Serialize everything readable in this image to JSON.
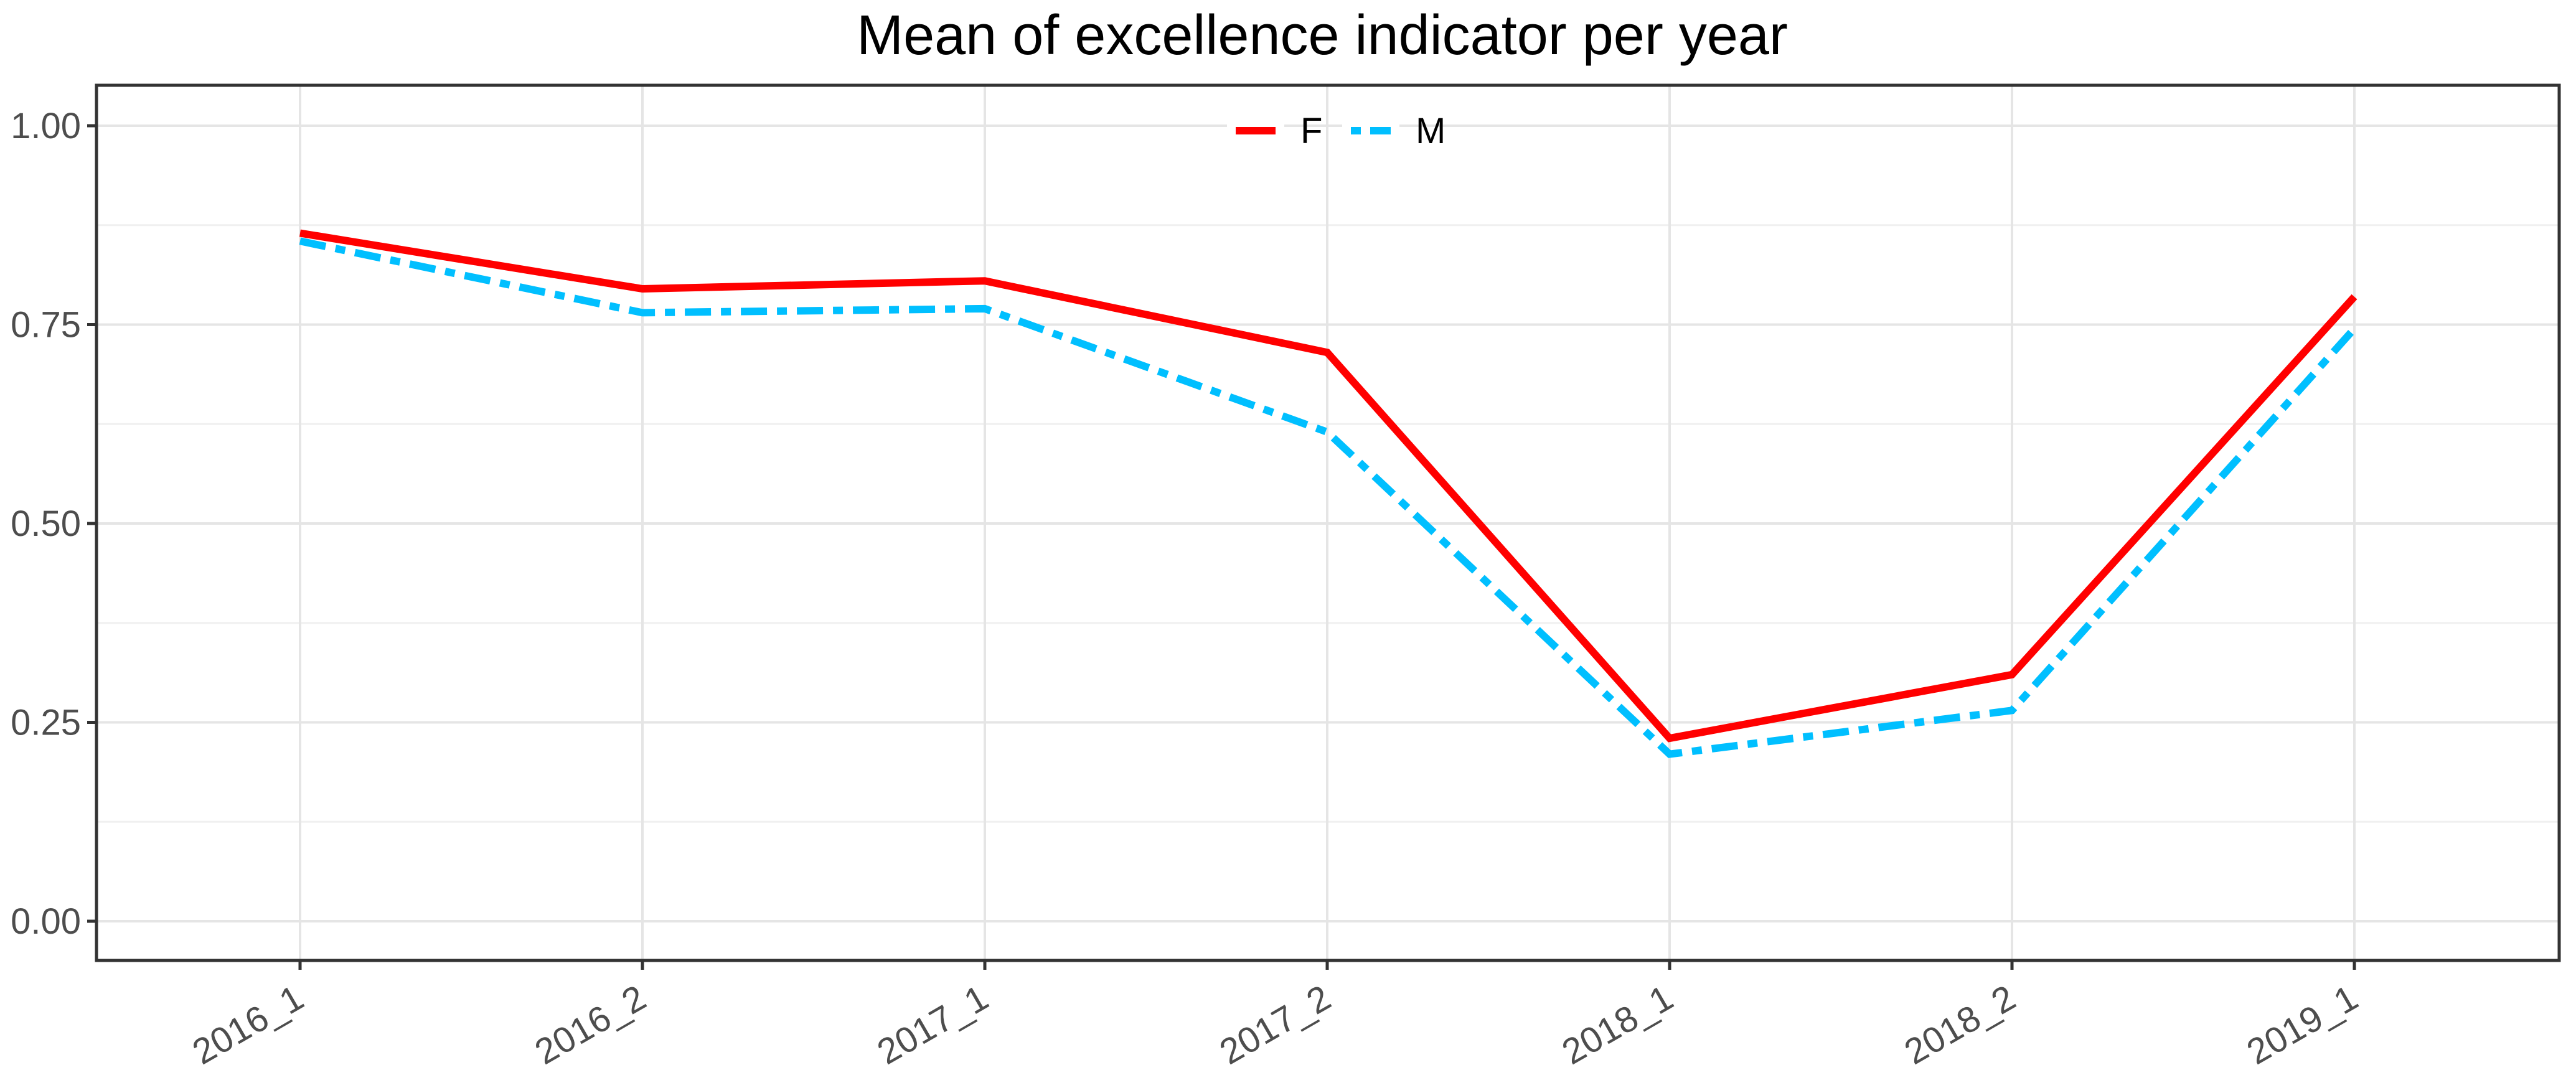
{
  "chart_data": {
    "type": "line",
    "title": "Mean of excellence indicator per year",
    "categories": [
      "2016_1",
      "2016_2",
      "2017_1",
      "2017_2",
      "2018_1",
      "2018_2",
      "2019_1"
    ],
    "series": [
      {
        "name": "F",
        "color": "#ff0000",
        "linestyle": "solid",
        "values": [
          0.865,
          0.795,
          0.805,
          0.715,
          0.23,
          0.31,
          0.785
        ]
      },
      {
        "name": "M",
        "color": "#00bfff",
        "linestyle": "twodash",
        "values": [
          0.855,
          0.765,
          0.77,
          0.615,
          0.21,
          0.265,
          0.745
        ]
      }
    ],
    "xlabel": "",
    "ylabel": "",
    "ylim": [
      0,
      1
    ],
    "yticks": {
      "values": [
        0,
        0.25,
        0.5,
        0.75,
        1.0
      ],
      "labels": [
        "0.00",
        "0.25",
        "0.50",
        "0.75",
        "1.00"
      ]
    },
    "minor_yticks": [
      0.125,
      0.375,
      0.625,
      0.875
    ],
    "grid": "horizontal major+minor, vertical major only",
    "legend_position": "top-center-inside",
    "x_tick_rotation_deg": 30
  },
  "colors": {
    "background": "#ffffff",
    "panel_background": "#ffffff",
    "panel_border": "#333333",
    "grid_major": "#e5e5e5",
    "grid_minor": "#f0f0f0",
    "tick_mark": "#333333",
    "axis_text": "#4d4d4d",
    "title_text": "#000000",
    "legend_text": "#000000",
    "legend_key_background": "#ffffff"
  }
}
